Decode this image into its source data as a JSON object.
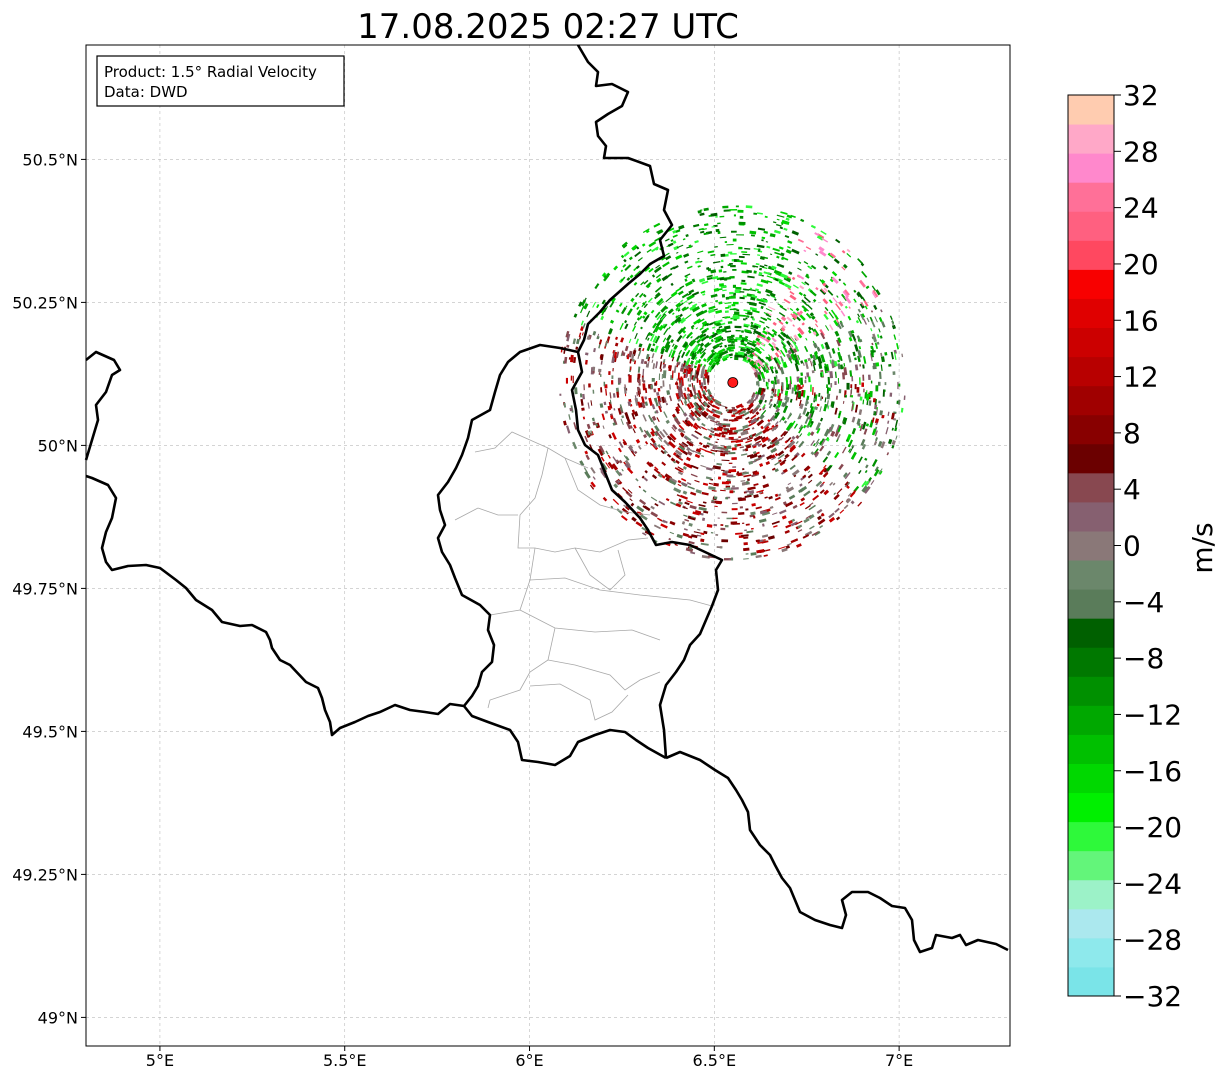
{
  "title": "17.08.2025 02:27 UTC",
  "info_box": {
    "product": "Product: 1.5° Radial Velocity",
    "data": "Data: DWD"
  },
  "map": {
    "lon_range": [
      4.8,
      7.3
    ],
    "lat_range": [
      48.95,
      50.7
    ],
    "radar_site": {
      "lon": 6.55,
      "lat": 50.11,
      "color": "#ff1a1a"
    },
    "x_ticks": [
      {
        "value": 5.0,
        "label": "5°E"
      },
      {
        "value": 5.5,
        "label": "5.5°E"
      },
      {
        "value": 6.0,
        "label": "6°E"
      },
      {
        "value": 6.5,
        "label": "6.5°E"
      },
      {
        "value": 7.0,
        "label": "7°E"
      }
    ],
    "y_ticks": [
      {
        "value": 50.5,
        "label": "50.5°N"
      },
      {
        "value": 50.25,
        "label": "50.25°N"
      },
      {
        "value": 50.0,
        "label": "50°N"
      },
      {
        "value": 49.75,
        "label": "49.75°N"
      },
      {
        "value": 49.5,
        "label": "49.5°N"
      },
      {
        "value": 49.25,
        "label": "49.25°N"
      },
      {
        "value": 49.0,
        "label": "49°N"
      }
    ],
    "grid": true
  },
  "colorbar": {
    "label": "m/s",
    "range": [
      -32,
      32
    ],
    "ticks": [
      {
        "value": 32,
        "label": "32"
      },
      {
        "value": 28,
        "label": "28"
      },
      {
        "value": 24,
        "label": "24"
      },
      {
        "value": 20,
        "label": "20"
      },
      {
        "value": 16,
        "label": "16"
      },
      {
        "value": 12,
        "label": "12"
      },
      {
        "value": 8,
        "label": "8"
      },
      {
        "value": 4,
        "label": "4"
      },
      {
        "value": 0,
        "label": "0"
      },
      {
        "value": -4,
        "label": "−4"
      },
      {
        "value": -8,
        "label": "−8"
      },
      {
        "value": -12,
        "label": "−12"
      },
      {
        "value": -16,
        "label": "−16"
      },
      {
        "value": -20,
        "label": "−20"
      },
      {
        "value": -24,
        "label": "−24"
      },
      {
        "value": -28,
        "label": "−28"
      },
      {
        "value": -32,
        "label": "−32"
      }
    ],
    "colors": [
      "#7ae4e8",
      "#8ee9ec",
      "#abe8ee",
      "#9cf2c8",
      "#63f57a",
      "#2ef93a",
      "#00f000",
      "#00d800",
      "#00c000",
      "#00a800",
      "#009000",
      "#007800",
      "#006000",
      "#5a7c5a",
      "#6b876b",
      "#8a7878",
      "#866070",
      "#884850",
      "#6b0000",
      "#880000",
      "#a00000",
      "#b80000",
      "#cc0000",
      "#e00000",
      "#f80000",
      "#ff4860",
      "#ff6080",
      "#ff7098",
      "#ff88cc",
      "#ffa8c8",
      "#ffccb0"
    ]
  }
}
